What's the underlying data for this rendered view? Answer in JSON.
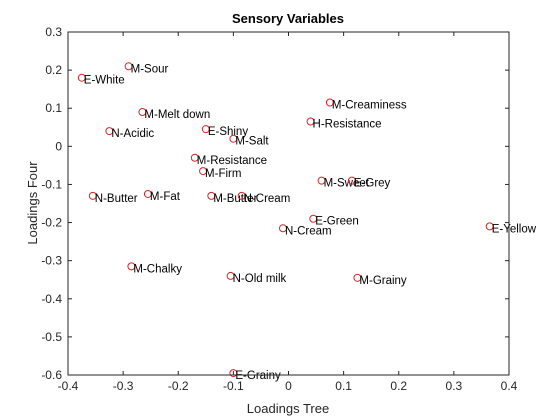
{
  "chart_data": {
    "type": "scatter",
    "title": "Sensory Variables",
    "xlabel": "Loadings Tree",
    "ylabel": "Loadings Four",
    "xlim": [
      -0.4,
      0.4
    ],
    "ylim": [
      -0.6,
      0.3
    ],
    "xticks": [
      "-0.4",
      "-0.3",
      "-0.2",
      "-0.1",
      "0",
      "0.1",
      "0.2",
      "0.3",
      "0.4"
    ],
    "yticks": [
      "-0.6",
      "-0.5",
      "-0.4",
      "-0.3",
      "-0.2",
      "-0.1",
      "0",
      "0.1",
      "0.2",
      "0.3"
    ],
    "grid": false,
    "marker_color": "#d62728",
    "points": [
      {
        "label": "M-Sour",
        "x": -0.29,
        "y": 0.21
      },
      {
        "label": "E-White",
        "x": -0.375,
        "y": 0.18
      },
      {
        "label": "M-Melt down",
        "x": -0.265,
        "y": 0.09
      },
      {
        "label": "N-Acidic",
        "x": -0.325,
        "y": 0.04
      },
      {
        "label": "E-Shiny",
        "x": -0.15,
        "y": 0.045
      },
      {
        "label": "M-Salt",
        "x": -0.1,
        "y": 0.02
      },
      {
        "label": "M-Creaminess",
        "x": 0.075,
        "y": 0.115
      },
      {
        "label": "H-Resistance",
        "x": 0.04,
        "y": 0.065
      },
      {
        "label": "M-Resistance",
        "x": -0.17,
        "y": -0.03
      },
      {
        "label": "M-Firm",
        "x": -0.155,
        "y": -0.065
      },
      {
        "label": "M-Sweet",
        "x": 0.06,
        "y": -0.09
      },
      {
        "label": "E-Grey",
        "x": 0.115,
        "y": -0.09
      },
      {
        "label": "N-Butter",
        "x": -0.355,
        "y": -0.13
      },
      {
        "label": "M-Fat",
        "x": -0.255,
        "y": -0.125
      },
      {
        "label": "M-Butter",
        "x": -0.14,
        "y": -0.13
      },
      {
        "label": "N-Cream",
        "x": -0.085,
        "y": -0.13
      },
      {
        "label": "E-Green",
        "x": 0.045,
        "y": -0.19
      },
      {
        "label": "N-Cream",
        "x": -0.01,
        "y": -0.215
      },
      {
        "label": "E-Yellow",
        "x": 0.365,
        "y": -0.21
      },
      {
        "label": "M-Chalky",
        "x": -0.285,
        "y": -0.315
      },
      {
        "label": "N-Old milk",
        "x": -0.105,
        "y": -0.34
      },
      {
        "label": "M-Grainy",
        "x": 0.125,
        "y": -0.345
      },
      {
        "label": "E-Grainy",
        "x": -0.1,
        "y": -0.595
      }
    ]
  }
}
